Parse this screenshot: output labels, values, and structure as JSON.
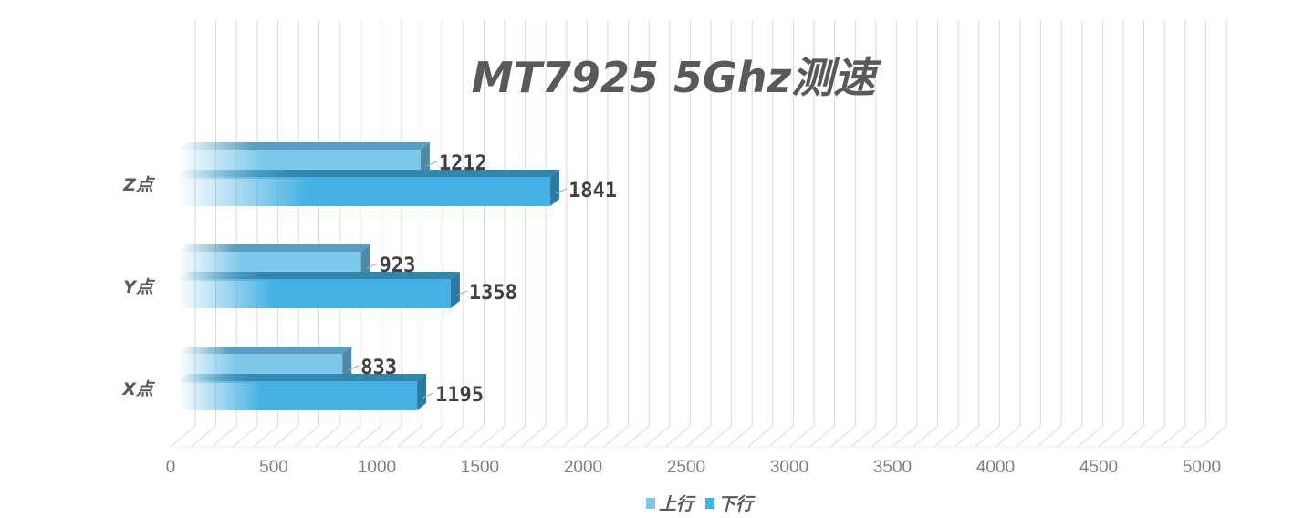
{
  "chart_data": {
    "type": "bar",
    "orientation": "horizontal",
    "title": "MT7925 5Ghz测速",
    "categories": [
      "Z点",
      "Y点",
      "X点"
    ],
    "series": [
      {
        "name": "上行",
        "values": [
          1212,
          923,
          833
        ],
        "color": "#7cc8ea"
      },
      {
        "name": "下行",
        "values": [
          1841,
          1358,
          1195
        ],
        "color": "#45b0e3"
      }
    ],
    "xlim": [
      0,
      5000
    ],
    "xticks": [
      "0",
      "500",
      "1000",
      "1500",
      "2000",
      "2500",
      "3000",
      "3500",
      "4000",
      "4500",
      "5000"
    ],
    "grid": true,
    "legend_position": "bottom",
    "style": "3d"
  }
}
